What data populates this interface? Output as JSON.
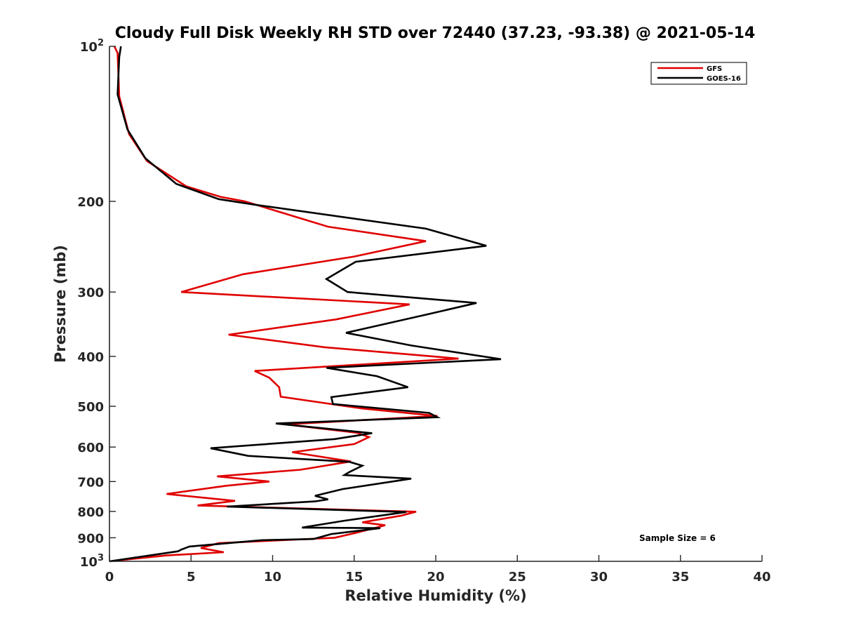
{
  "chart_data": {
    "type": "line",
    "title": "Cloudy Full Disk Weekly RH STD over 72440 (37.23, -93.38) @ 2021-05-14",
    "xlabel": "Relative Humidity (%)",
    "ylabel": "Pressure (mb)",
    "xlim": [
      0,
      40
    ],
    "ylim": [
      100,
      1000
    ],
    "y_scale": "log",
    "y_reversed": true,
    "grid": false,
    "legend_position": "top-right",
    "x_ticks": [
      {
        "value": 0,
        "label": "0"
      },
      {
        "value": 5,
        "label": "5"
      },
      {
        "value": 10,
        "label": "10"
      },
      {
        "value": 15,
        "label": "15"
      },
      {
        "value": 20,
        "label": "20"
      },
      {
        "value": 25,
        "label": "25"
      },
      {
        "value": 30,
        "label": "30"
      },
      {
        "value": 35,
        "label": "35"
      },
      {
        "value": 40,
        "label": "40"
      }
    ],
    "y_ticks": [
      {
        "value": 100,
        "base": "10",
        "exp": "2"
      },
      {
        "value": 200,
        "label": "200"
      },
      {
        "value": 300,
        "label": "300"
      },
      {
        "value": 400,
        "label": "400"
      },
      {
        "value": 500,
        "label": "500"
      },
      {
        "value": 600,
        "label": "600"
      },
      {
        "value": 700,
        "label": "700"
      },
      {
        "value": 800,
        "label": "800"
      },
      {
        "value": 900,
        "label": "900"
      },
      {
        "value": 1000,
        "base": "10",
        "exp": "3"
      }
    ],
    "annotation": "Sample Size = 6",
    "series": [
      {
        "name": "GFS",
        "color": "#e00000",
        "points": [
          [
            0.3,
            100
          ],
          [
            0.5,
            103
          ],
          [
            0.6,
            125
          ],
          [
            1.2,
            148
          ],
          [
            2.3,
            167
          ],
          [
            4.7,
            187
          ],
          [
            6.8,
            196
          ],
          [
            8.3,
            200
          ],
          [
            13.4,
            224
          ],
          [
            19.4,
            239
          ],
          [
            15.0,
            256
          ],
          [
            8.2,
            277
          ],
          [
            4.4,
            300
          ],
          [
            18.4,
            317
          ],
          [
            13.9,
            339
          ],
          [
            7.3,
            363
          ],
          [
            13.2,
            384
          ],
          [
            21.4,
            404
          ],
          [
            8.9,
            427
          ],
          [
            9.8,
            440
          ],
          [
            10.4,
            459
          ],
          [
            10.5,
            479
          ],
          [
            15.5,
            505
          ],
          [
            20.1,
            522
          ],
          [
            10.8,
            542
          ],
          [
            15.2,
            563
          ],
          [
            15.9,
            574
          ],
          [
            15.0,
            592
          ],
          [
            11.2,
            614
          ],
          [
            14.8,
            640
          ],
          [
            11.7,
            664
          ],
          [
            6.6,
            684
          ],
          [
            9.8,
            700
          ],
          [
            7.2,
            713
          ],
          [
            3.5,
            740
          ],
          [
            7.7,
            763
          ],
          [
            5.4,
            779
          ],
          [
            7.2,
            782
          ],
          [
            18.8,
            801
          ],
          [
            17.9,
            815
          ],
          [
            15.5,
            840
          ],
          [
            16.9,
            851
          ],
          [
            15.2,
            879
          ],
          [
            13.8,
            900
          ],
          [
            6.7,
            922
          ],
          [
            5.6,
            942
          ],
          [
            7.0,
            960
          ],
          [
            3.5,
            974
          ],
          [
            0.0,
            1000
          ]
        ]
      },
      {
        "name": "GOES-16",
        "color": "#000000",
        "points": [
          [
            0.7,
            100
          ],
          [
            0.6,
            105
          ],
          [
            0.5,
            124
          ],
          [
            1.1,
            145
          ],
          [
            2.2,
            165
          ],
          [
            4.1,
            185
          ],
          [
            6.7,
            198
          ],
          [
            8.9,
            203
          ],
          [
            19.4,
            226
          ],
          [
            23.1,
            244
          ],
          [
            15.1,
            262
          ],
          [
            13.3,
            283
          ],
          [
            14.6,
            300
          ],
          [
            22.5,
            315
          ],
          [
            19.4,
            332
          ],
          [
            14.5,
            360
          ],
          [
            18.5,
            381
          ],
          [
            24.0,
            405
          ],
          [
            13.3,
            421
          ],
          [
            16.4,
            437
          ],
          [
            18.3,
            459
          ],
          [
            13.6,
            480
          ],
          [
            13.7,
            495
          ],
          [
            19.6,
            515
          ],
          [
            20.1,
            525
          ],
          [
            10.2,
            540
          ],
          [
            16.1,
            564
          ],
          [
            13.8,
            579
          ],
          [
            6.2,
            603
          ],
          [
            8.5,
            624
          ],
          [
            14.7,
            641
          ],
          [
            15.5,
            652
          ],
          [
            14.7,
            671
          ],
          [
            14.4,
            680
          ],
          [
            18.5,
            691
          ],
          [
            14.3,
            724
          ],
          [
            12.6,
            746
          ],
          [
            13.4,
            758
          ],
          [
            12.6,
            765
          ],
          [
            7.2,
            783
          ],
          [
            18.2,
            802
          ],
          [
            14.4,
            834
          ],
          [
            11.8,
            860
          ],
          [
            16.6,
            862
          ],
          [
            13.6,
            885
          ],
          [
            12.5,
            905
          ],
          [
            9.3,
            910
          ],
          [
            4.9,
            936
          ],
          [
            4.4,
            949
          ],
          [
            4.2,
            956
          ],
          [
            0.0,
            1000
          ]
        ]
      }
    ]
  }
}
